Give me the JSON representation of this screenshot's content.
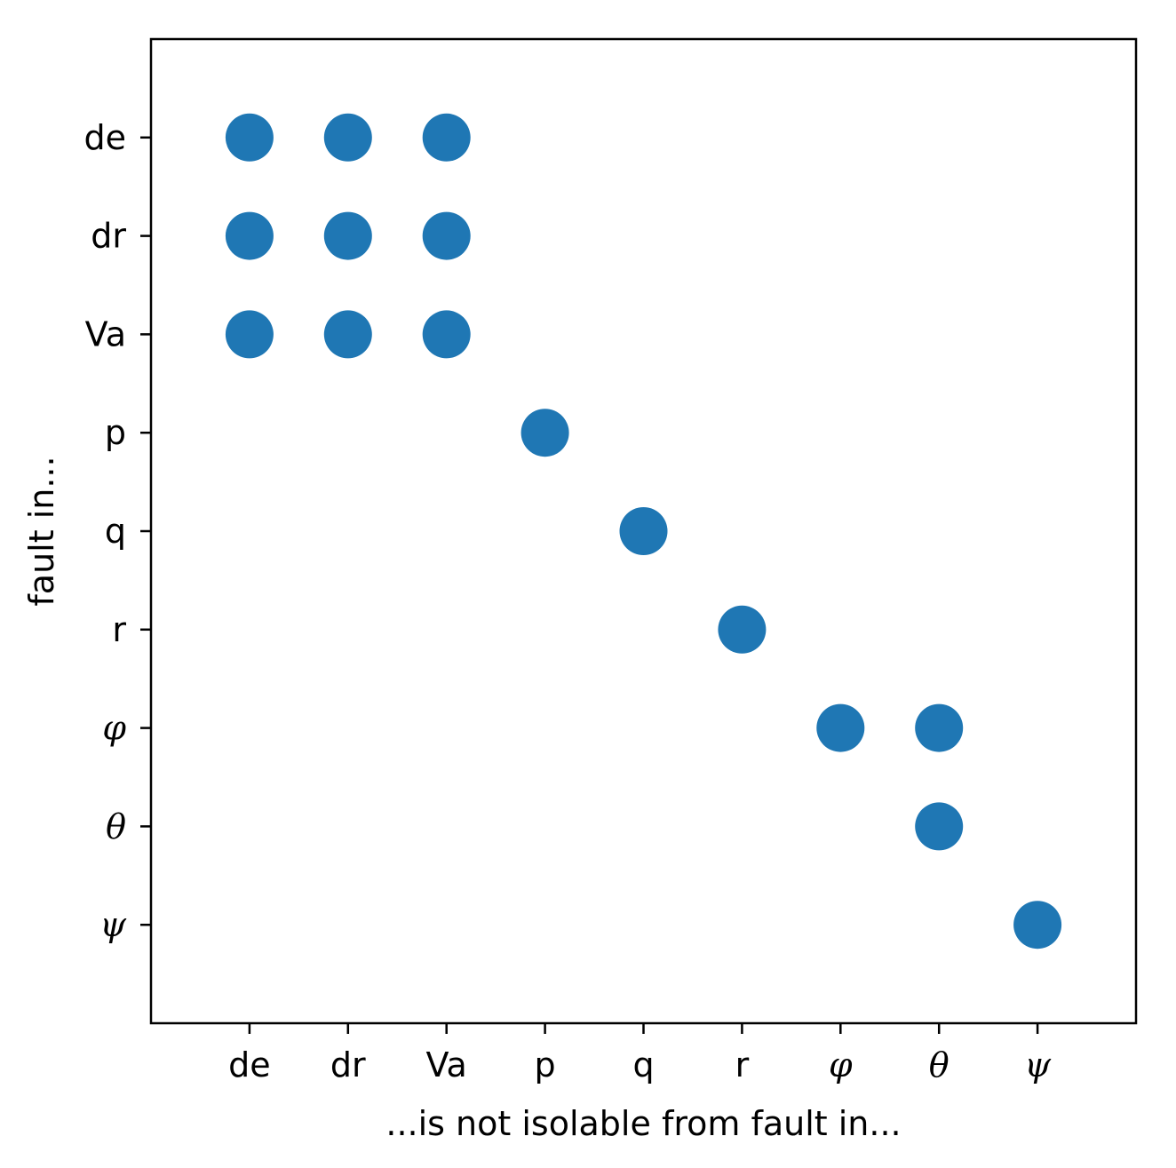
{
  "chart_data": {
    "type": "scatter",
    "title": "",
    "xlabel": "...is not isolable from fault in...",
    "ylabel": "fault in...",
    "x_categories": [
      "de",
      "dr",
      "Va",
      "p",
      "q",
      "r",
      "φ",
      "θ",
      "ψ"
    ],
    "y_categories": [
      "de",
      "dr",
      "Va",
      "p",
      "q",
      "r",
      "φ",
      "θ",
      "ψ"
    ],
    "italic_categories": [
      "φ",
      "θ",
      "ψ"
    ],
    "points": [
      {
        "x": "de",
        "y": "de"
      },
      {
        "x": "dr",
        "y": "de"
      },
      {
        "x": "Va",
        "y": "de"
      },
      {
        "x": "de",
        "y": "dr"
      },
      {
        "x": "dr",
        "y": "dr"
      },
      {
        "x": "Va",
        "y": "dr"
      },
      {
        "x": "de",
        "y": "Va"
      },
      {
        "x": "dr",
        "y": "Va"
      },
      {
        "x": "Va",
        "y": "Va"
      },
      {
        "x": "p",
        "y": "p"
      },
      {
        "x": "q",
        "y": "q"
      },
      {
        "x": "r",
        "y": "r"
      },
      {
        "x": "φ",
        "y": "φ"
      },
      {
        "x": "θ",
        "y": "φ"
      },
      {
        "x": "θ",
        "y": "θ"
      },
      {
        "x": "ψ",
        "y": "ψ"
      }
    ],
    "xlim": [
      -1,
      9
    ],
    "ylim": [
      -1,
      9
    ],
    "y_inverted": true,
    "grid": false,
    "legend": "none",
    "marker_color": "#1f77b4"
  }
}
